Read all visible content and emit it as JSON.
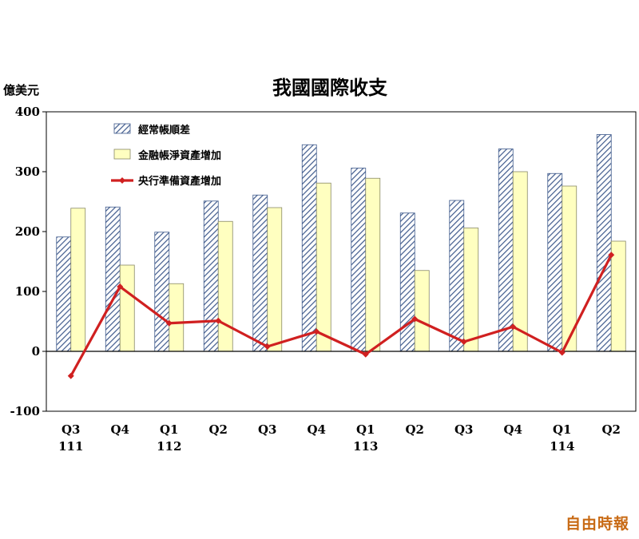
{
  "chart_data": {
    "type": "bar",
    "title": "我國國際收支",
    "ylabel": "億美元",
    "ylim": [
      -100,
      400
    ],
    "yticks": [
      -100,
      0,
      100,
      200,
      300,
      400
    ],
    "quarters": [
      "Q3",
      "Q4",
      "Q1",
      "Q2",
      "Q3",
      "Q4",
      "Q1",
      "Q2",
      "Q3",
      "Q4",
      "Q1",
      "Q2"
    ],
    "years": [
      "111",
      "",
      "112",
      "",
      "",
      "",
      "113",
      "",
      "",
      "",
      "114",
      ""
    ],
    "legend_position": "top-left",
    "grid": false,
    "series": [
      {
        "name": "經常帳順差",
        "kind": "bar",
        "pattern": "diagonal-hatch",
        "color": "#3f5a8c",
        "values": [
          191,
          241,
          199,
          251,
          261,
          345,
          306,
          231,
          252,
          338,
          297,
          362
        ]
      },
      {
        "name": "金融帳淨資產增加",
        "kind": "bar",
        "color": "#ffffc0",
        "values": [
          239,
          144,
          113,
          217,
          240,
          281,
          289,
          135,
          206,
          300,
          276,
          184
        ]
      },
      {
        "name": "央行準備資產增加",
        "kind": "line",
        "color": "#d02020",
        "values": [
          -41,
          108,
          47,
          51,
          8,
          33,
          -5,
          54,
          16,
          41,
          -2,
          161
        ]
      }
    ]
  },
  "watermark": "自由時報"
}
